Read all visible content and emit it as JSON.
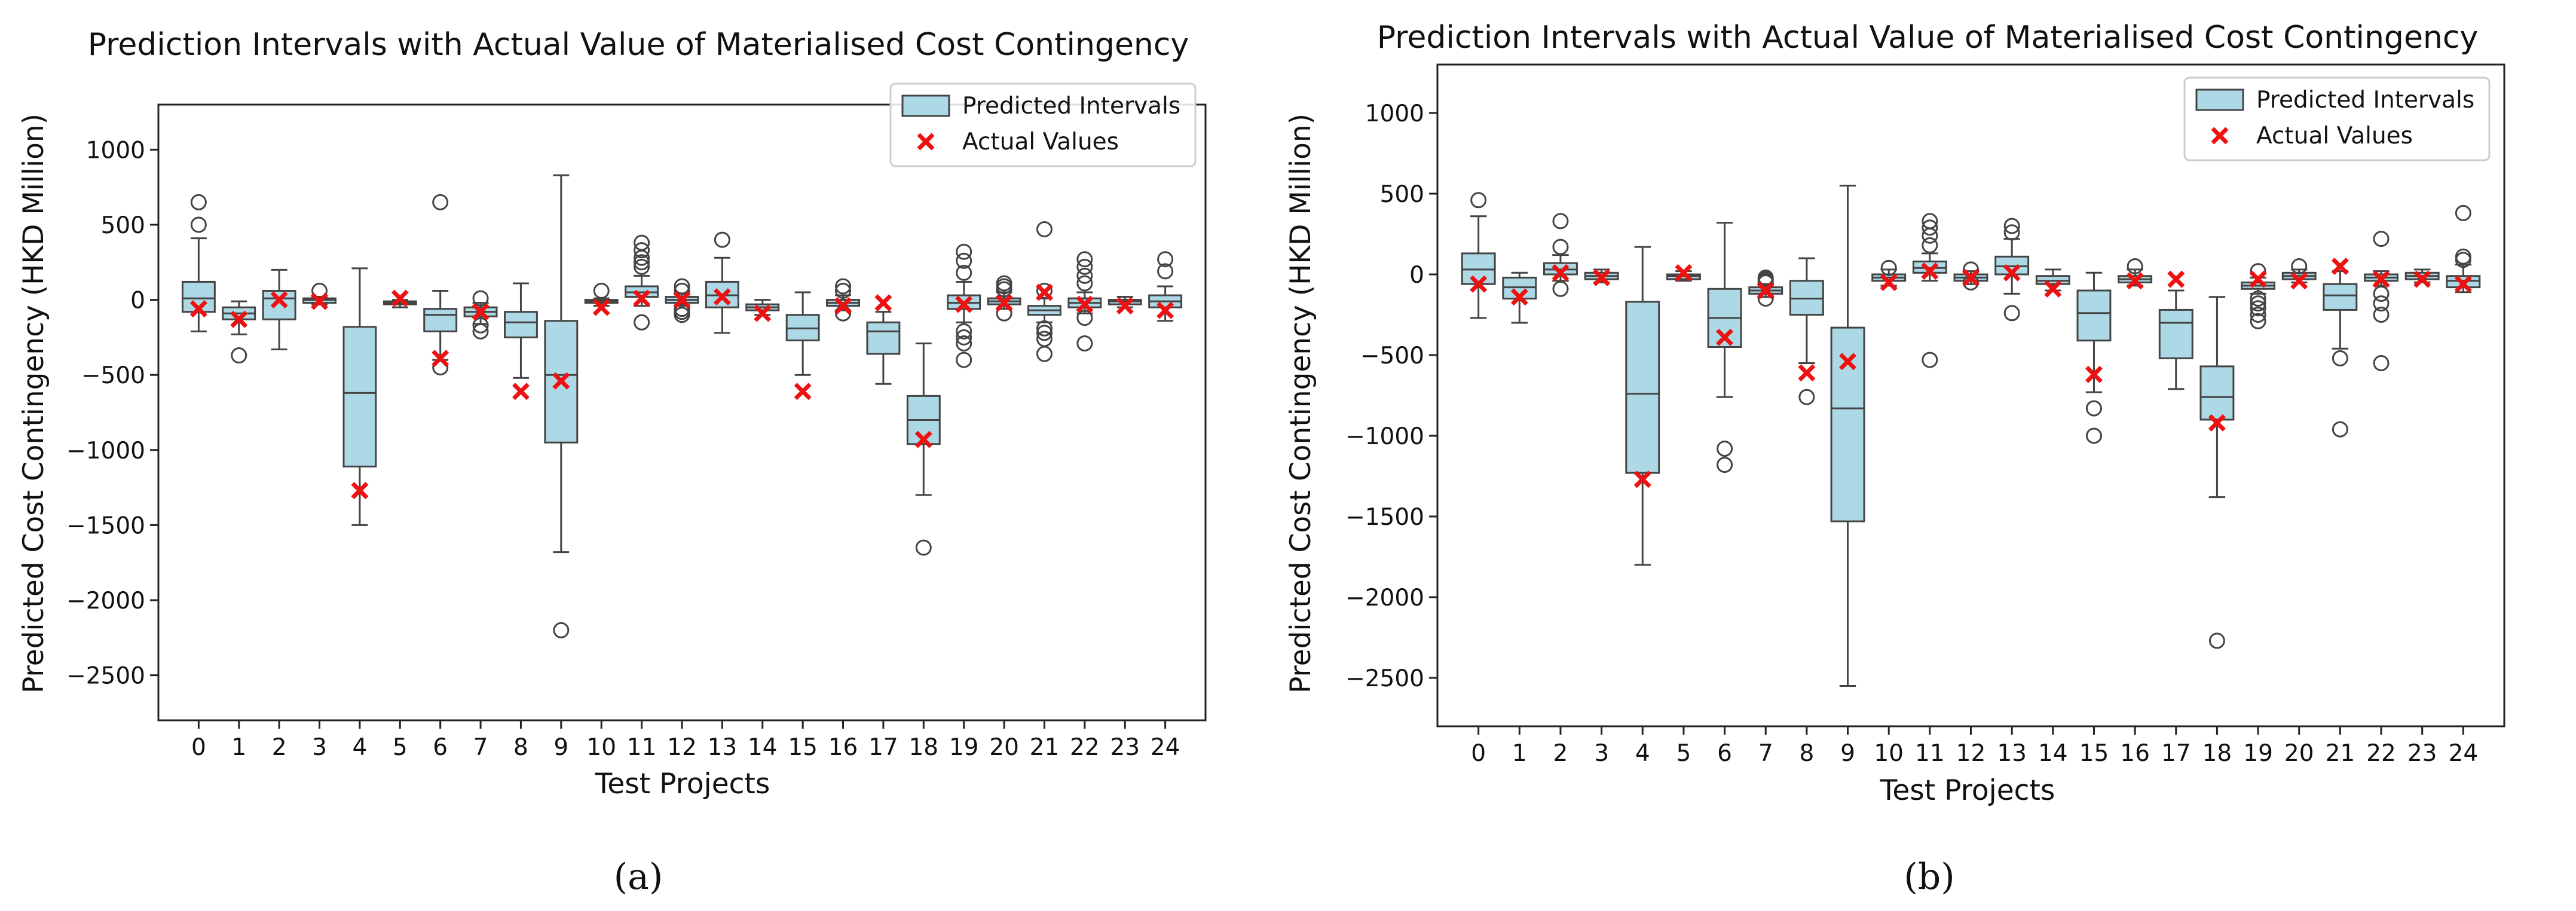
{
  "chart_data": [
    {
      "type": "box",
      "panel_label": "(a)",
      "title": "Prediction Intervals with Actual Value of Materialised Cost Contingency",
      "xlabel": "Test Projects",
      "ylabel": "Predicted Cost Contingency (HKD Million)",
      "ylim": [
        -2800,
        1300
      ],
      "yticks": [
        -2500,
        -2000,
        -1500,
        -1000,
        -500,
        0,
        500,
        1000
      ],
      "legend": {
        "position": "top-right",
        "intervals_label": "Predicted Intervals",
        "actual_label": "Actual Values"
      },
      "categories": [
        "0",
        "1",
        "2",
        "3",
        "4",
        "5",
        "6",
        "7",
        "8",
        "9",
        "10",
        "11",
        "12",
        "13",
        "14",
        "15",
        "16",
        "17",
        "18",
        "19",
        "20",
        "21",
        "22",
        "23",
        "24"
      ],
      "boxes": [
        {
          "q1": -80,
          "median": 10,
          "q3": 120,
          "wlo": -210,
          "whi": 410,
          "outliers": [
            500,
            650
          ]
        },
        {
          "q1": -130,
          "median": -90,
          "q3": -50,
          "wlo": -230,
          "whi": -10,
          "outliers": [
            -370
          ]
        },
        {
          "q1": -130,
          "median": 10,
          "q3": 60,
          "wlo": -330,
          "whi": 200,
          "outliers": []
        },
        {
          "q1": -20,
          "median": 0,
          "q3": 10,
          "wlo": -30,
          "whi": 20,
          "outliers": [
            60
          ]
        },
        {
          "q1": -1110,
          "median": -620,
          "q3": -180,
          "wlo": -1500,
          "whi": 210,
          "outliers": []
        },
        {
          "q1": -30,
          "median": -20,
          "q3": -10,
          "wlo": -50,
          "whi": 0,
          "outliers": []
        },
        {
          "q1": -210,
          "median": -100,
          "q3": -60,
          "wlo": -400,
          "whi": 60,
          "outliers": [
            650,
            -450
          ]
        },
        {
          "q1": -110,
          "median": -80,
          "q3": -50,
          "wlo": -160,
          "whi": -20,
          "outliers": [
            10,
            -170,
            -210
          ]
        },
        {
          "q1": -250,
          "median": -150,
          "q3": -80,
          "wlo": -520,
          "whi": 110,
          "outliers": []
        },
        {
          "q1": -950,
          "median": -500,
          "q3": -140,
          "wlo": -1680,
          "whi": 830,
          "outliers": [
            -2200
          ]
        },
        {
          "q1": -20,
          "median": -10,
          "q3": 0,
          "wlo": -40,
          "whi": 10,
          "outliers": [
            60
          ]
        },
        {
          "q1": 20,
          "median": 50,
          "q3": 90,
          "wlo": -40,
          "whi": 160,
          "outliers": [
            220,
            250,
            280,
            330,
            380,
            -150
          ]
        },
        {
          "q1": -20,
          "median": 0,
          "q3": 20,
          "wlo": -40,
          "whi": 40,
          "outliers": [
            60,
            90,
            -60,
            -80,
            -100
          ]
        },
        {
          "q1": -50,
          "median": 30,
          "q3": 120,
          "wlo": -220,
          "whi": 280,
          "outliers": [
            400
          ]
        },
        {
          "q1": -70,
          "median": -50,
          "q3": -30,
          "wlo": -100,
          "whi": 0,
          "outliers": []
        },
        {
          "q1": -270,
          "median": -190,
          "q3": -100,
          "wlo": -500,
          "whi": 50,
          "outliers": []
        },
        {
          "q1": -40,
          "median": -20,
          "q3": 0,
          "wlo": -70,
          "whi": 30,
          "outliers": [
            60,
            90,
            -90
          ]
        },
        {
          "q1": -360,
          "median": -210,
          "q3": -150,
          "wlo": -560,
          "whi": -80,
          "outliers": []
        },
        {
          "q1": -960,
          "median": -800,
          "q3": -640,
          "wlo": -1300,
          "whi": -290,
          "outliers": [
            -1650
          ]
        },
        {
          "q1": -60,
          "median": -20,
          "q3": 30,
          "wlo": -150,
          "whi": 120,
          "outliers": [
            180,
            260,
            320,
            -210,
            -250,
            -290,
            -400
          ]
        },
        {
          "q1": -30,
          "median": -10,
          "q3": 10,
          "wlo": -60,
          "whi": 50,
          "outliers": [
            70,
            90,
            110,
            -90
          ]
        },
        {
          "q1": -100,
          "median": -70,
          "q3": -40,
          "wlo": -150,
          "whi": 10,
          "outliers": [
            60,
            470,
            -190,
            -220,
            -260,
            -360
          ]
        },
        {
          "q1": -50,
          "median": -20,
          "q3": 10,
          "wlo": -90,
          "whi": 50,
          "outliers": [
            110,
            160,
            220,
            270,
            -120,
            -290
          ]
        },
        {
          "q1": -30,
          "median": -10,
          "q3": 0,
          "wlo": -50,
          "whi": 20,
          "outliers": []
        },
        {
          "q1": -50,
          "median": -10,
          "q3": 30,
          "wlo": -140,
          "whi": 90,
          "outliers": [
            190,
            270
          ]
        }
      ],
      "actual_values": [
        -60,
        -130,
        0,
        -10,
        -1270,
        10,
        -390,
        -80,
        -610,
        -540,
        -50,
        10,
        0,
        20,
        -90,
        -610,
        -40,
        -20,
        -930,
        -30,
        -20,
        50,
        -30,
        -40,
        -70
      ]
    },
    {
      "type": "box",
      "panel_label": "(b)",
      "title": "Prediction Intervals with Actual Value of Materialised Cost Contingency",
      "xlabel": "Test Projects",
      "ylabel": "Predicted Cost Contingency (HKD Million)",
      "ylim": [
        -2800,
        1300
      ],
      "yticks": [
        -2500,
        -2000,
        -1500,
        -1000,
        -500,
        0,
        500,
        1000
      ],
      "legend": {
        "position": "top-right",
        "intervals_label": "Predicted Intervals",
        "actual_label": "Actual Values"
      },
      "categories": [
        "0",
        "1",
        "2",
        "3",
        "4",
        "5",
        "6",
        "7",
        "8",
        "9",
        "10",
        "11",
        "12",
        "13",
        "14",
        "15",
        "16",
        "17",
        "18",
        "19",
        "20",
        "21",
        "22",
        "23",
        "24"
      ],
      "boxes": [
        {
          "q1": -60,
          "median": 30,
          "q3": 130,
          "wlo": -270,
          "whi": 360,
          "outliers": [
            460
          ]
        },
        {
          "q1": -150,
          "median": -80,
          "q3": -20,
          "wlo": -300,
          "whi": 10,
          "outliers": []
        },
        {
          "q1": 0,
          "median": 30,
          "q3": 70,
          "wlo": -40,
          "whi": 120,
          "outliers": [
            170,
            330,
            -90
          ]
        },
        {
          "q1": -30,
          "median": -10,
          "q3": 10,
          "wlo": -50,
          "whi": 30,
          "outliers": []
        },
        {
          "q1": -1230,
          "median": -740,
          "q3": -170,
          "wlo": -1800,
          "whi": 170,
          "outliers": []
        },
        {
          "q1": -30,
          "median": -10,
          "q3": 0,
          "wlo": -40,
          "whi": 20,
          "outliers": []
        },
        {
          "q1": -450,
          "median": -270,
          "q3": -90,
          "wlo": -760,
          "whi": 320,
          "outliers": [
            -1080,
            -1180
          ]
        },
        {
          "q1": -120,
          "median": -100,
          "q3": -80,
          "wlo": -140,
          "whi": -60,
          "outliers": [
            -20,
            -30,
            -40,
            -50,
            -150
          ]
        },
        {
          "q1": -250,
          "median": -150,
          "q3": -40,
          "wlo": -550,
          "whi": 100,
          "outliers": [
            -760
          ]
        },
        {
          "q1": -1530,
          "median": -830,
          "q3": -330,
          "wlo": -2550,
          "whi": 550,
          "outliers": []
        },
        {
          "q1": -40,
          "median": -20,
          "q3": 0,
          "wlo": -70,
          "whi": 30,
          "outliers": [
            40
          ]
        },
        {
          "q1": 10,
          "median": 40,
          "q3": 80,
          "wlo": -40,
          "whi": 130,
          "outliers": [
            180,
            240,
            290,
            330,
            -530
          ]
        },
        {
          "q1": -40,
          "median": -20,
          "q3": 0,
          "wlo": -60,
          "whi": 20,
          "outliers": [
            30,
            -50
          ]
        },
        {
          "q1": 0,
          "median": 50,
          "q3": 110,
          "wlo": -120,
          "whi": 220,
          "outliers": [
            260,
            300,
            -240
          ]
        },
        {
          "q1": -60,
          "median": -40,
          "q3": -10,
          "wlo": -100,
          "whi": 30,
          "outliers": []
        },
        {
          "q1": -410,
          "median": -240,
          "q3": -100,
          "wlo": -730,
          "whi": 10,
          "outliers": [
            -830,
            -1000
          ]
        },
        {
          "q1": -50,
          "median": -30,
          "q3": -10,
          "wlo": -70,
          "whi": 30,
          "outliers": [
            50
          ]
        },
        {
          "q1": -520,
          "median": -300,
          "q3": -220,
          "wlo": -710,
          "whi": -100,
          "outliers": []
        },
        {
          "q1": -900,
          "median": -760,
          "q3": -570,
          "wlo": -1380,
          "whi": -140,
          "outliers": [
            -2270
          ]
        },
        {
          "q1": -90,
          "median": -70,
          "q3": -50,
          "wlo": -120,
          "whi": -20,
          "outliers": [
            20,
            -150,
            -180,
            -210,
            -250,
            -290
          ]
        },
        {
          "q1": -30,
          "median": -10,
          "q3": 10,
          "wlo": -50,
          "whi": 30,
          "outliers": [
            50
          ]
        },
        {
          "q1": -220,
          "median": -130,
          "q3": -60,
          "wlo": -460,
          "whi": 20,
          "outliers": [
            -520,
            -960
          ]
        },
        {
          "q1": -40,
          "median": -20,
          "q3": 0,
          "wlo": -70,
          "whi": 20,
          "outliers": [
            -120,
            -180,
            -250,
            -550,
            220
          ]
        },
        {
          "q1": -30,
          "median": -10,
          "q3": 10,
          "wlo": -50,
          "whi": 30,
          "outliers": []
        },
        {
          "q1": -80,
          "median": -40,
          "q3": -10,
          "wlo": -110,
          "whi": 60,
          "outliers": [
            90,
            110,
            380
          ]
        }
      ],
      "actual_values": [
        -60,
        -140,
        10,
        -20,
        -1270,
        10,
        -390,
        -100,
        -610,
        -540,
        -50,
        20,
        -20,
        10,
        -90,
        -620,
        -40,
        -30,
        -920,
        -30,
        -40,
        50,
        -30,
        -30,
        -60
      ]
    }
  ]
}
